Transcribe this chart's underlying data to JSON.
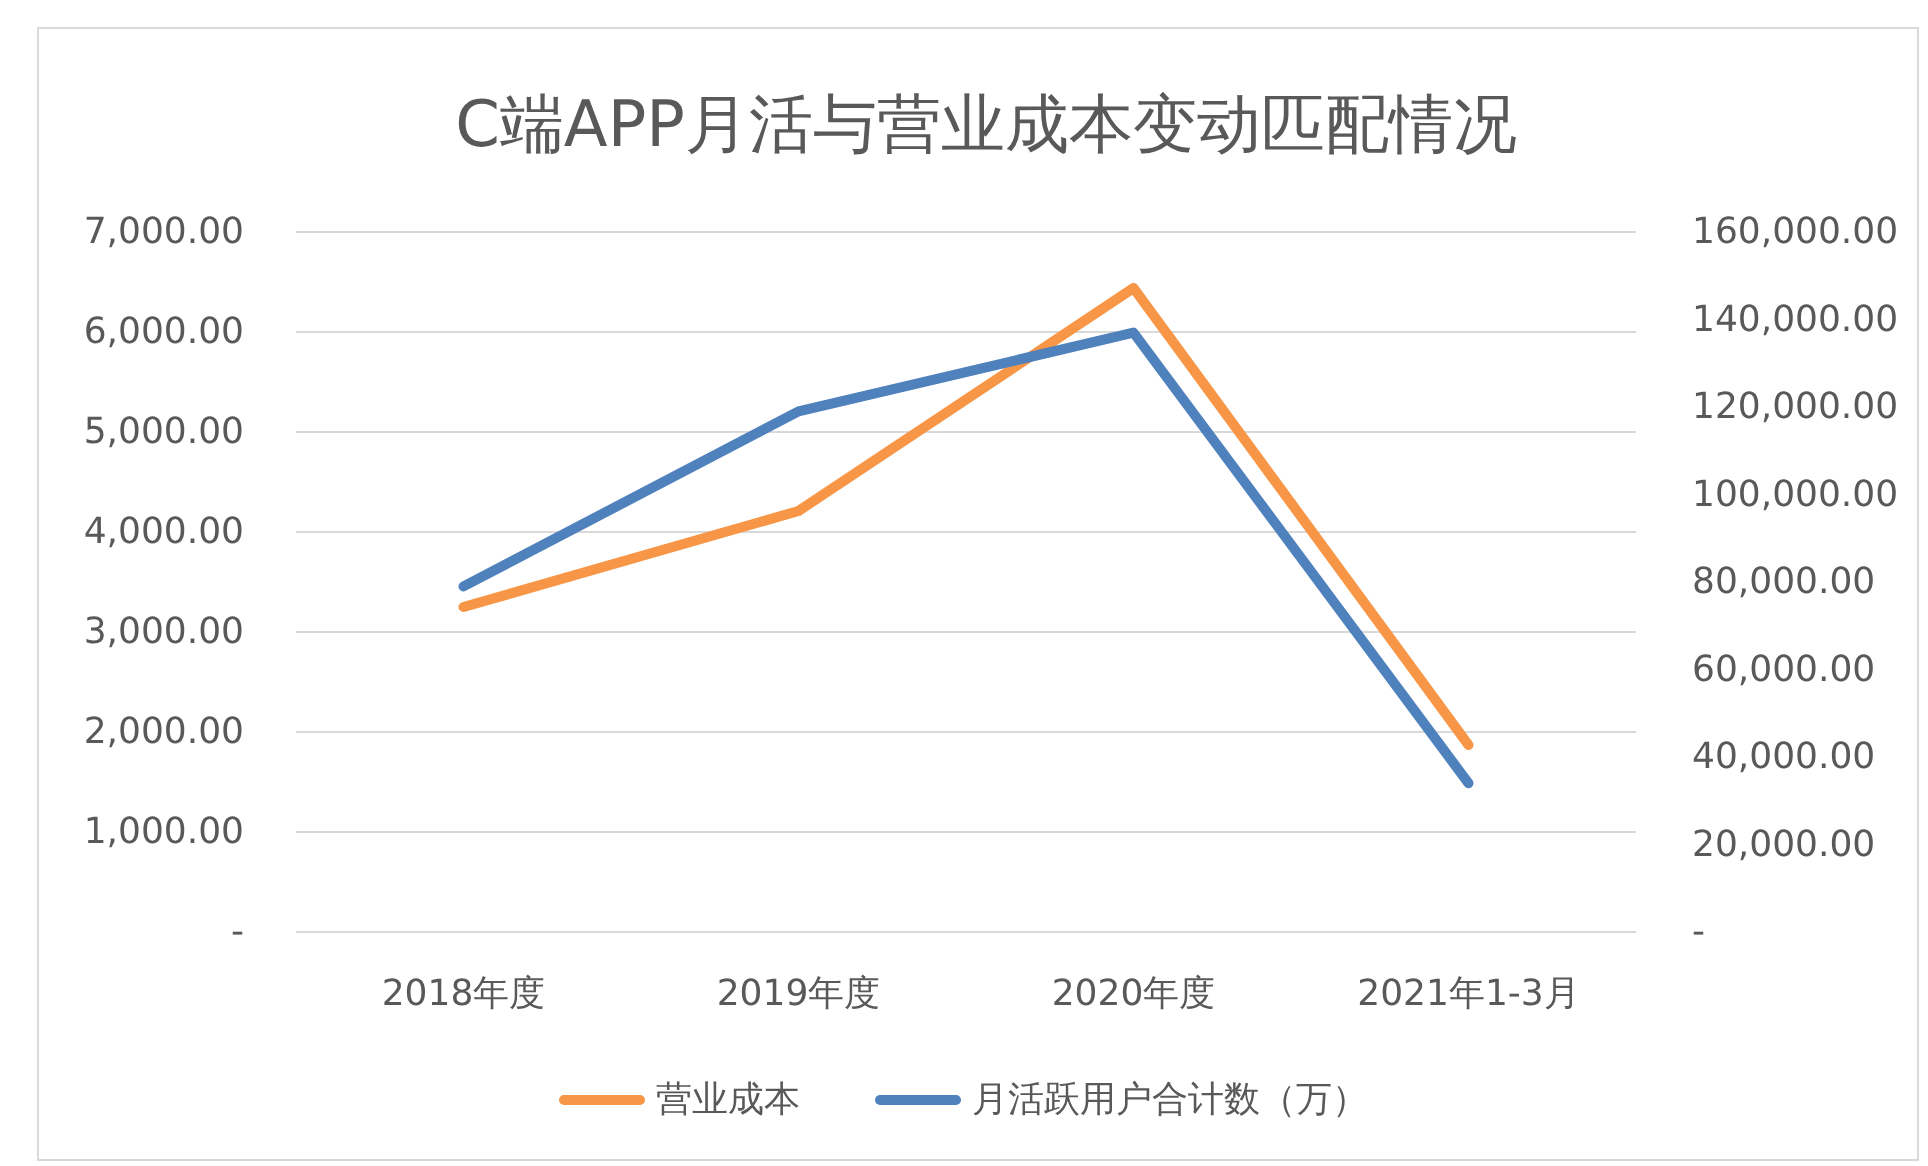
{
  "chart_data": {
    "type": "line",
    "title": "C端APP月活与营业成本变动匹配情况",
    "categories": [
      "2018年度",
      "2019年度",
      "2020年度",
      "2021年1-3月"
    ],
    "series": [
      {
        "name": "营业成本",
        "color": "#f79646",
        "values": [
          3250,
          4210,
          6440,
          1870
        ]
      },
      {
        "name": "月活跃用户合计数（万）",
        "color": "#4f81bd",
        "axis": "y2",
        "values": [
          79000,
          119000,
          137000,
          34000
        ]
      }
    ],
    "ylim": [
      0,
      7000
    ],
    "yticks": [
      {
        "value": 0,
        "label": "-"
      },
      {
        "value": 1000,
        "label": "1,000.00"
      },
      {
        "value": 2000,
        "label": "2,000.00"
      },
      {
        "value": 3000,
        "label": "3,000.00"
      },
      {
        "value": 4000,
        "label": "4,000.00"
      },
      {
        "value": 5000,
        "label": "5,000.00"
      },
      {
        "value": 6000,
        "label": "6,000.00"
      },
      {
        "value": 7000,
        "label": "7,000.00"
      }
    ],
    "y2lim": [
      0,
      160000
    ],
    "y2ticks": [
      {
        "value": 0,
        "label": "-"
      },
      {
        "value": 20000,
        "label": "20,000.00"
      },
      {
        "value": 40000,
        "label": "40,000.00"
      },
      {
        "value": 60000,
        "label": "60,000.00"
      },
      {
        "value": 80000,
        "label": "80,000.00"
      },
      {
        "value": 100000,
        "label": "100,000.00"
      },
      {
        "value": 120000,
        "label": "120,000.00"
      },
      {
        "value": 140000,
        "label": "140,000.00"
      },
      {
        "value": 160000,
        "label": "160,000.00"
      }
    ],
    "grid": "y",
    "legend": "bottom"
  }
}
